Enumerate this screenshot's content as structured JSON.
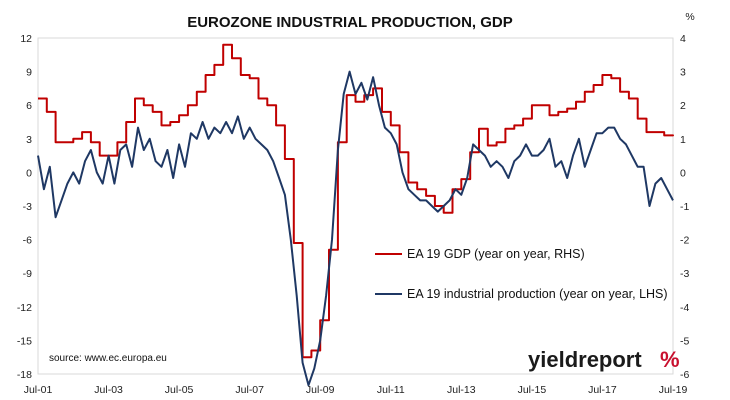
{
  "chart_data": {
    "type": "line",
    "title": "EUROZONE INDUSTRIAL PRODUCTION, GDP",
    "right_axis_unit": "%",
    "x_axis": {
      "start": "2001-07",
      "end": "2019-07",
      "tick_labels": [
        "Jul-01",
        "Jul-03",
        "Jul-05",
        "Jul-07",
        "Jul-09",
        "Jul-11",
        "Jul-13",
        "Jul-15",
        "Jul-17",
        "Jul-19"
      ]
    },
    "y_left": {
      "ylim": [
        -18,
        12
      ],
      "ticks": [
        "12",
        "9",
        "6",
        "3",
        "0",
        "-3",
        "-6",
        "-9",
        "-12",
        "-15",
        "-18"
      ]
    },
    "y_right": {
      "ylim": [
        -6,
        4
      ],
      "ticks": [
        "4",
        "3",
        "2",
        "1",
        "0",
        "-1",
        "-2",
        "-3",
        "-4",
        "-5",
        "-6"
      ]
    },
    "grid": "off",
    "legend_position": "center-right",
    "series": [
      {
        "name": "EA 19 GDP (year on year, RHS)",
        "axis": "right",
        "color": "#c00000",
        "step": true,
        "points": [
          [
            "2001-07",
            2.2
          ],
          [
            "2001-10",
            1.8
          ],
          [
            "2002-01",
            0.9
          ],
          [
            "2002-04",
            0.9
          ],
          [
            "2002-07",
            1.0
          ],
          [
            "2002-10",
            1.2
          ],
          [
            "2003-01",
            0.9
          ],
          [
            "2003-04",
            0.5
          ],
          [
            "2003-07",
            0.5
          ],
          [
            "2003-10",
            0.9
          ],
          [
            "2004-01",
            1.5
          ],
          [
            "2004-04",
            2.2
          ],
          [
            "2004-07",
            2.0
          ],
          [
            "2004-10",
            1.8
          ],
          [
            "2005-01",
            1.4
          ],
          [
            "2005-04",
            1.5
          ],
          [
            "2005-07",
            1.7
          ],
          [
            "2005-10",
            2.0
          ],
          [
            "2006-01",
            2.4
          ],
          [
            "2006-04",
            2.9
          ],
          [
            "2006-07",
            3.2
          ],
          [
            "2006-10",
            3.8
          ],
          [
            "2007-01",
            3.4
          ],
          [
            "2007-04",
            2.9
          ],
          [
            "2007-07",
            2.8
          ],
          [
            "2007-10",
            2.2
          ],
          [
            "2008-01",
            2.0
          ],
          [
            "2008-04",
            1.4
          ],
          [
            "2008-07",
            0.4
          ],
          [
            "2008-10",
            -2.1
          ],
          [
            "2009-01",
            -5.5
          ],
          [
            "2009-04",
            -5.3
          ],
          [
            "2009-07",
            -4.4
          ],
          [
            "2009-10",
            -2.3
          ],
          [
            "2010-01",
            0.9
          ],
          [
            "2010-04",
            2.3
          ],
          [
            "2010-07",
            2.1
          ],
          [
            "2010-10",
            2.3
          ],
          [
            "2011-01",
            2.5
          ],
          [
            "2011-04",
            1.8
          ],
          [
            "2011-07",
            1.4
          ],
          [
            "2011-10",
            0.6
          ],
          [
            "2012-01",
            -0.3
          ],
          [
            "2012-04",
            -0.5
          ],
          [
            "2012-07",
            -0.7
          ],
          [
            "2012-10",
            -1.0
          ],
          [
            "2013-01",
            -1.2
          ],
          [
            "2013-04",
            -0.5
          ],
          [
            "2013-07",
            -0.2
          ],
          [
            "2013-10",
            0.6
          ],
          [
            "2014-01",
            1.3
          ],
          [
            "2014-04",
            0.8
          ],
          [
            "2014-07",
            0.9
          ],
          [
            "2014-10",
            1.3
          ],
          [
            "2015-01",
            1.4
          ],
          [
            "2015-04",
            1.6
          ],
          [
            "2015-07",
            2.0
          ],
          [
            "2015-10",
            2.0
          ],
          [
            "2016-01",
            1.7
          ],
          [
            "2016-04",
            1.8
          ],
          [
            "2016-07",
            1.9
          ],
          [
            "2016-10",
            2.1
          ],
          [
            "2017-01",
            2.4
          ],
          [
            "2017-04",
            2.6
          ],
          [
            "2017-07",
            2.9
          ],
          [
            "2017-10",
            2.8
          ],
          [
            "2018-01",
            2.4
          ],
          [
            "2018-04",
            2.2
          ],
          [
            "2018-07",
            1.6
          ],
          [
            "2018-10",
            1.2
          ],
          [
            "2019-01",
            1.2
          ],
          [
            "2019-04",
            1.1
          ],
          [
            "2019-07",
            1.1
          ]
        ]
      },
      {
        "name": "EA 19 industrial production (year on year, LHS)",
        "axis": "left",
        "color": "#1f3864",
        "step": false,
        "points": [
          [
            "2001-07",
            1.5
          ],
          [
            "2001-09",
            -1.5
          ],
          [
            "2001-11",
            0.5
          ],
          [
            "2002-01",
            -4
          ],
          [
            "2002-03",
            -2.5
          ],
          [
            "2002-05",
            -1
          ],
          [
            "2002-07",
            0
          ],
          [
            "2002-09",
            -1
          ],
          [
            "2002-11",
            1
          ],
          [
            "2003-01",
            2
          ],
          [
            "2003-03",
            0
          ],
          [
            "2003-05",
            -1
          ],
          [
            "2003-07",
            1.5
          ],
          [
            "2003-09",
            -1
          ],
          [
            "2003-11",
            2
          ],
          [
            "2004-01",
            2.5
          ],
          [
            "2004-03",
            0.5
          ],
          [
            "2004-05",
            4
          ],
          [
            "2004-07",
            2
          ],
          [
            "2004-09",
            3
          ],
          [
            "2004-11",
            1
          ],
          [
            "2005-01",
            0.5
          ],
          [
            "2005-03",
            2
          ],
          [
            "2005-05",
            -0.5
          ],
          [
            "2005-07",
            2.5
          ],
          [
            "2005-09",
            0.5
          ],
          [
            "2005-11",
            3.5
          ],
          [
            "2006-01",
            3
          ],
          [
            "2006-03",
            4.5
          ],
          [
            "2006-05",
            3
          ],
          [
            "2006-07",
            4
          ],
          [
            "2006-09",
            3.5
          ],
          [
            "2006-11",
            4.5
          ],
          [
            "2007-01",
            3.5
          ],
          [
            "2007-03",
            5
          ],
          [
            "2007-05",
            3
          ],
          [
            "2007-07",
            4
          ],
          [
            "2007-09",
            3
          ],
          [
            "2007-11",
            2.5
          ],
          [
            "2008-01",
            2
          ],
          [
            "2008-03",
            1
          ],
          [
            "2008-05",
            -0.5
          ],
          [
            "2008-07",
            -2
          ],
          [
            "2008-09",
            -6
          ],
          [
            "2008-11",
            -11
          ],
          [
            "2009-01",
            -17
          ],
          [
            "2009-03",
            -19
          ],
          [
            "2009-05",
            -17.5
          ],
          [
            "2009-07",
            -15
          ],
          [
            "2009-09",
            -11
          ],
          [
            "2009-11",
            -6
          ],
          [
            "2010-01",
            2
          ],
          [
            "2010-03",
            7
          ],
          [
            "2010-05",
            9
          ],
          [
            "2010-07",
            7
          ],
          [
            "2010-09",
            8
          ],
          [
            "2010-11",
            6.5
          ],
          [
            "2011-01",
            8.5
          ],
          [
            "2011-03",
            6
          ],
          [
            "2011-05",
            4
          ],
          [
            "2011-07",
            3.5
          ],
          [
            "2011-09",
            2.5
          ],
          [
            "2011-11",
            0
          ],
          [
            "2012-01",
            -1.5
          ],
          [
            "2012-03",
            -2
          ],
          [
            "2012-05",
            -2.5
          ],
          [
            "2012-07",
            -2.5
          ],
          [
            "2012-09",
            -3
          ],
          [
            "2012-11",
            -3.5
          ],
          [
            "2013-01",
            -3
          ],
          [
            "2013-03",
            -2.5
          ],
          [
            "2013-05",
            -1.5
          ],
          [
            "2013-07",
            -2
          ],
          [
            "2013-09",
            -0.5
          ],
          [
            "2013-11",
            2.5
          ],
          [
            "2014-01",
            2
          ],
          [
            "2014-03",
            1.5
          ],
          [
            "2014-05",
            0.5
          ],
          [
            "2014-07",
            1
          ],
          [
            "2014-09",
            0.5
          ],
          [
            "2014-11",
            -0.5
          ],
          [
            "2015-01",
            1
          ],
          [
            "2015-03",
            1.5
          ],
          [
            "2015-05",
            2.5
          ],
          [
            "2015-07",
            1.5
          ],
          [
            "2015-09",
            1.5
          ],
          [
            "2015-11",
            2
          ],
          [
            "2016-01",
            3
          ],
          [
            "2016-03",
            0.5
          ],
          [
            "2016-05",
            1
          ],
          [
            "2016-07",
            -0.5
          ],
          [
            "2016-09",
            1.5
          ],
          [
            "2016-11",
            3
          ],
          [
            "2017-01",
            0.5
          ],
          [
            "2017-03",
            2
          ],
          [
            "2017-05",
            3.5
          ],
          [
            "2017-07",
            3.5
          ],
          [
            "2017-09",
            4
          ],
          [
            "2017-11",
            4
          ],
          [
            "2018-01",
            3
          ],
          [
            "2018-03",
            2.5
          ],
          [
            "2018-05",
            1.5
          ],
          [
            "2018-07",
            0.5
          ],
          [
            "2018-09",
            0.5
          ],
          [
            "2018-11",
            -3
          ],
          [
            "2019-01",
            -1
          ],
          [
            "2019-03",
            -0.5
          ],
          [
            "2019-05",
            -1.5
          ],
          [
            "2019-07",
            -2.5
          ]
        ]
      }
    ],
    "source_note": "source: www.ec.europa.eu",
    "brand": {
      "text": "yieldreport",
      "mark": "%"
    }
  }
}
